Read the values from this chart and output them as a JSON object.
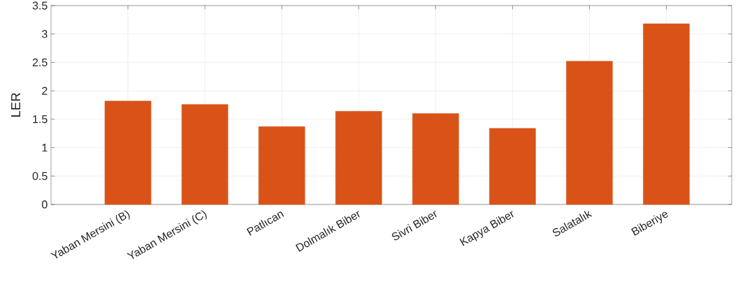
{
  "chart_data": {
    "type": "bar",
    "ylabel": "LER",
    "categories": [
      "Yaban Mersini (B)",
      "Yaban Mersini (C)",
      "Patlıcan",
      "Dolmalık Biber",
      "Sivri Biber",
      "Kapya Biber",
      "Salatalık",
      "Biberiye"
    ],
    "values": [
      1.82,
      1.76,
      1.37,
      1.64,
      1.6,
      1.34,
      2.52,
      3.18
    ],
    "color": "#d95319",
    "ylim": [
      0,
      3.5
    ],
    "yticks": [
      0,
      0.5,
      1,
      1.5,
      2,
      2.5,
      3,
      3.5
    ],
    "grid": true
  }
}
